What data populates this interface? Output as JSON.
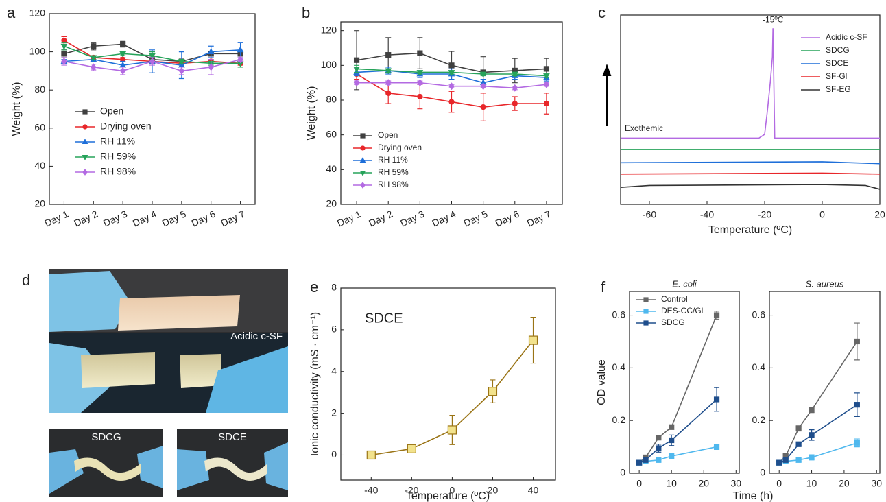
{
  "panel_labels": [
    "a",
    "b",
    "c",
    "d",
    "e",
    "f"
  ],
  "photo_labels": [
    "Acidic c-SF",
    "SDCG",
    "SDCE"
  ],
  "chart_data": [
    {
      "type": "line",
      "ylabel": "Weight (%)",
      "categories": [
        "Day 1",
        "Day 2",
        "Day 3",
        "Day 4",
        "Day 5",
        "Day 6",
        "Day 7"
      ],
      "ylim": [
        20,
        120
      ],
      "yticks": [
        20,
        40,
        60,
        80,
        100,
        120
      ],
      "series": [
        {
          "name": "Open",
          "color": "#404040",
          "marker": "square",
          "values": [
            99,
            103,
            104,
            96,
            95,
            99,
            99
          ],
          "errors": [
            2,
            2,
            1.5,
            1,
            1,
            1,
            1
          ]
        },
        {
          "name": "Drying oven",
          "color": "#e8262a",
          "marker": "circle",
          "values": [
            106,
            97,
            96,
            95,
            94,
            95,
            94
          ],
          "errors": [
            2,
            1,
            1,
            1,
            1,
            1,
            1
          ]
        },
        {
          "name": "RH 11%",
          "color": "#1e6fd9",
          "marker": "triangle-up",
          "values": [
            95,
            96,
            93,
            95,
            93,
            100,
            101
          ],
          "errors": [
            1,
            1,
            2,
            6,
            7,
            3,
            4
          ]
        },
        {
          "name": "RH 59%",
          "color": "#26a35a",
          "marker": "triangle-down",
          "values": [
            103,
            97,
            99,
            98,
            95,
            94,
            94
          ],
          "errors": [
            2,
            1,
            1,
            2,
            1,
            1,
            2
          ]
        },
        {
          "name": "RH 98%",
          "color": "#b36ae2",
          "marker": "diamond",
          "values": [
            95,
            92,
            90,
            95,
            90,
            92,
            96
          ],
          "errors": [
            2,
            1.5,
            2,
            2,
            2,
            4,
            1
          ]
        }
      ]
    },
    {
      "type": "line",
      "ylabel": "Weight (%)",
      "categories": [
        "Day 1",
        "Day 2",
        "Day 3",
        "Day 4",
        "Day 5",
        "Day 6",
        "Day 7"
      ],
      "ylim": [
        20,
        125
      ],
      "yticks": [
        20,
        40,
        60,
        80,
        100,
        120
      ],
      "series": [
        {
          "name": "Open",
          "color": "#404040",
          "marker": "square",
          "values": [
            103,
            106,
            107,
            100,
            96,
            97,
            98
          ],
          "errors": [
            17,
            10,
            9,
            8,
            9,
            7,
            6
          ]
        },
        {
          "name": "Drying oven",
          "color": "#e8262a",
          "marker": "circle",
          "values": [
            95,
            84,
            82,
            79,
            76,
            78,
            78
          ],
          "errors": [
            3,
            6,
            7,
            6,
            8,
            4,
            6
          ]
        },
        {
          "name": "RH 11%",
          "color": "#1e6fd9",
          "marker": "triangle-up",
          "values": [
            96,
            97,
            95,
            95,
            90,
            94,
            93
          ],
          "errors": [
            2,
            2,
            2,
            3,
            2,
            2,
            2
          ]
        },
        {
          "name": "RH 59%",
          "color": "#26a35a",
          "marker": "triangle-down",
          "values": [
            98,
            97,
            96,
            96,
            95,
            95,
            94
          ],
          "errors": [
            2,
            1,
            1,
            1,
            1,
            1,
            1
          ]
        },
        {
          "name": "RH 98%",
          "color": "#b36ae2",
          "marker": "diamond",
          "values": [
            90,
            90,
            90,
            88,
            88,
            87,
            89
          ],
          "errors": [
            1,
            1,
            1,
            1,
            1,
            1,
            1
          ]
        }
      ]
    },
    {
      "type": "line",
      "xlabel": "Temperature (ºC)",
      "annotation": "-15ºC",
      "arrow_label": "Exothemic",
      "xlim": [
        -70,
        20
      ],
      "xticks": [
        -60,
        -40,
        -20,
        0,
        20
      ],
      "ylim": [
        0,
        10
      ],
      "series": [
        {
          "name": "Acidic c-SF",
          "color": "#b36ae2",
          "x": [
            -70,
            -22,
            -20,
            -19,
            -18,
            -17.3,
            -17.1,
            -16.5,
            20
          ],
          "values": [
            3.5,
            3.5,
            3.7,
            5,
            6.5,
            7.8,
            9.3,
            3.5,
            3.5
          ]
        },
        {
          "name": "SDCG",
          "color": "#26a35a",
          "x": [
            -70,
            20
          ],
          "values": [
            2.9,
            2.9
          ]
        },
        {
          "name": "SDCE",
          "color": "#1e6fd9",
          "x": [
            -70,
            0,
            20
          ],
          "values": [
            2.2,
            2.25,
            2.15
          ]
        },
        {
          "name": "SF-Gl",
          "color": "#e8262a",
          "x": [
            -70,
            0,
            20
          ],
          "values": [
            1.6,
            1.65,
            1.6
          ]
        },
        {
          "name": "SF-EG",
          "color": "#333333",
          "x": [
            -70,
            -60,
            0,
            15,
            20
          ],
          "values": [
            0.9,
            1.0,
            1.05,
            1.0,
            0.8
          ]
        }
      ]
    },
    {
      "type": "line",
      "label": "SDCE",
      "xlabel": "Temperature (ºC)",
      "ylabel": "Ionic conductivity (mS · cm⁻¹)",
      "xlim": [
        -55,
        51
      ],
      "xticks": [
        -40,
        -20,
        0,
        20,
        40
      ],
      "ylim": [
        -1.2,
        8
      ],
      "yticks": [
        0,
        2,
        4,
        6,
        8
      ],
      "series": [
        {
          "color": "#9a7416",
          "marker": "square",
          "marker_fill": "#f2e28c",
          "x": [
            -40,
            -20,
            0,
            20,
            40
          ],
          "values": [
            0,
            0.3,
            1.2,
            3.05,
            5.5
          ],
          "errors": [
            0.15,
            0.2,
            0.7,
            0.55,
            1.1
          ]
        }
      ]
    },
    {
      "type": "line",
      "title": "E. coli",
      "xlabel": "Time (h)",
      "ylabel": "OD value",
      "xlim": [
        -3,
        31
      ],
      "xticks": [
        0,
        10,
        20,
        30
      ],
      "ylim": [
        0,
        0.69
      ],
      "yticks": [
        0,
        0.2,
        0.4,
        0.6
      ],
      "series": [
        {
          "name": "Control",
          "color": "#666666",
          "marker": "square",
          "x": [
            0,
            2,
            6,
            10,
            24
          ],
          "values": [
            0.04,
            0.06,
            0.135,
            0.175,
            0.6
          ],
          "errors": [
            0.005,
            0.005,
            0.005,
            0.008,
            0.015
          ]
        },
        {
          "name": "DES-CC/Gl",
          "color": "#4fb8ee",
          "marker": "square",
          "x": [
            0,
            2,
            6,
            10,
            24
          ],
          "values": [
            0.04,
            0.045,
            0.05,
            0.065,
            0.1
          ],
          "errors": [
            0.005,
            0.005,
            0.005,
            0.008,
            0.01
          ]
        },
        {
          "name": "SDCG",
          "color": "#1f4e8c",
          "marker": "square",
          "x": [
            0,
            2,
            6,
            10,
            24
          ],
          "values": [
            0.04,
            0.05,
            0.095,
            0.125,
            0.28
          ],
          "errors": [
            0.005,
            0.005,
            0.015,
            0.02,
            0.045
          ]
        }
      ]
    },
    {
      "type": "line",
      "title": "S. aureus",
      "xlim": [
        -3,
        31
      ],
      "xticks": [
        0,
        10,
        20,
        30
      ],
      "ylim": [
        0,
        0.69
      ],
      "yticks": [
        0,
        0.2,
        0.4,
        0.6
      ],
      "series": [
        {
          "color": "#666666",
          "marker": "square",
          "x": [
            0,
            2,
            6,
            10,
            24
          ],
          "values": [
            0.04,
            0.065,
            0.17,
            0.24,
            0.5
          ],
          "errors": [
            0.005,
            0.005,
            0.01,
            0.01,
            0.07
          ]
        },
        {
          "color": "#4fb8ee",
          "marker": "square",
          "x": [
            0,
            2,
            6,
            10,
            24
          ],
          "values": [
            0.04,
            0.045,
            0.05,
            0.06,
            0.115
          ],
          "errors": [
            0.005,
            0.005,
            0.005,
            0.01,
            0.015
          ]
        },
        {
          "color": "#1f4e8c",
          "marker": "square",
          "x": [
            0,
            2,
            6,
            10,
            24
          ],
          "values": [
            0.04,
            0.05,
            0.11,
            0.145,
            0.26
          ],
          "errors": [
            0.005,
            0.005,
            0.005,
            0.02,
            0.045
          ]
        }
      ]
    }
  ]
}
